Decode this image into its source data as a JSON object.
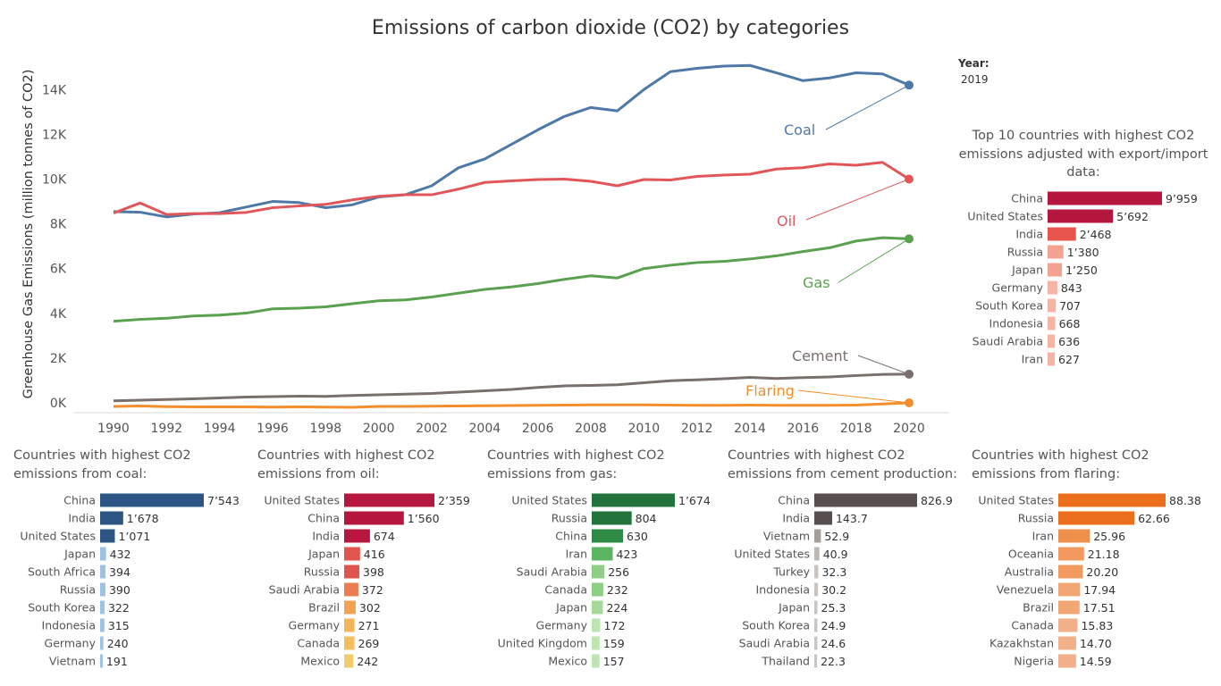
{
  "title": "Emissions of carbon dioxide (CO2) by categories",
  "year_selector": {
    "label": "Year:",
    "value": "2019"
  },
  "top10_title": "Top 10 countries with highest CO2 emissions adjusted with export/import data:",
  "panels": [
    {
      "title": "Countries with highest CO2 emissions from coal:"
    },
    {
      "title": "Countries with highest CO2 emissions from oil:"
    },
    {
      "title": "Countries with highest CO2 emissions from gas:"
    },
    {
      "title": "Countries with highest CO2 emissions from cement production:"
    },
    {
      "title": "Countries with highest CO2 emissions from flaring:"
    }
  ],
  "chart_data": [
    {
      "type": "line",
      "title": "Emissions of carbon dioxide (CO2) by categories",
      "xlabel": "",
      "ylabel": "Greenhouse Gas Emissions (million tonnes of CO2)",
      "x": [
        1990,
        1991,
        1992,
        1993,
        1994,
        1995,
        1996,
        1997,
        1998,
        1999,
        2000,
        2001,
        2002,
        2003,
        2004,
        2005,
        2006,
        2007,
        2008,
        2009,
        2010,
        2011,
        2012,
        2013,
        2014,
        2015,
        2016,
        2017,
        2018,
        2019,
        2020
      ],
      "xticks": [
        "1990",
        "1992",
        "1994",
        "1996",
        "1998",
        "2000",
        "2002",
        "2004",
        "2006",
        "2008",
        "2010",
        "2012",
        "2014",
        "2016",
        "2018",
        "2020"
      ],
      "yticks": [
        "0K",
        "2K",
        "4K",
        "6K",
        "8K",
        "10K",
        "12K",
        "14K"
      ],
      "xlim": [
        1990,
        2020
      ],
      "ylim": [
        0,
        15800
      ],
      "grid": false,
      "series": [
        {
          "name": "Coal",
          "color": "#4e79a7",
          "values": [
            8550,
            8520,
            8310,
            8440,
            8500,
            8750,
            9000,
            8950,
            8720,
            8850,
            9200,
            9300,
            9700,
            10500,
            10900,
            11550,
            12200,
            12800,
            13200,
            13050,
            14000,
            14800,
            14950,
            15050,
            15080,
            14750,
            14400,
            14520,
            14750,
            14700,
            14200
          ]
        },
        {
          "name": "Oil",
          "color": "#e15759",
          "values": [
            8480,
            8930,
            8420,
            8460,
            8460,
            8510,
            8720,
            8800,
            8870,
            9070,
            9230,
            9300,
            9300,
            9550,
            9850,
            9920,
            9980,
            10000,
            9900,
            9700,
            9980,
            9960,
            10120,
            10180,
            10220,
            10450,
            10510,
            10680,
            10620,
            10750,
            10000
          ]
        },
        {
          "name": "Gas",
          "color": "#59a14f",
          "values": [
            3650,
            3730,
            3780,
            3880,
            3920,
            4010,
            4200,
            4230,
            4290,
            4430,
            4560,
            4600,
            4730,
            4900,
            5070,
            5180,
            5330,
            5520,
            5680,
            5580,
            6000,
            6150,
            6270,
            6320,
            6430,
            6570,
            6760,
            6930,
            7230,
            7380,
            7330
          ]
        },
        {
          "name": "Cement",
          "color": "#79706e",
          "values": [
            90,
            120,
            150,
            180,
            220,
            260,
            280,
            300,
            290,
            330,
            360,
            390,
            420,
            480,
            540,
            600,
            690,
            760,
            780,
            810,
            900,
            990,
            1030,
            1080,
            1140,
            1090,
            1130,
            1160,
            1220,
            1270,
            1280
          ]
        },
        {
          "name": "Flaring",
          "color": "#f28e2b",
          "values": [
            -160,
            -140,
            -170,
            -180,
            -180,
            -180,
            -190,
            -180,
            -190,
            -200,
            -160,
            -160,
            -150,
            -140,
            -130,
            -120,
            -110,
            -100,
            -90,
            -90,
            -90,
            -100,
            -110,
            -110,
            -100,
            -110,
            -110,
            -110,
            -100,
            -50,
            0
          ]
        }
      ]
    },
    {
      "type": "bar",
      "title": "Top 10 countries with highest CO2 emissions adjusted with export/import data:",
      "categories": [
        "China",
        "United States",
        "India",
        "Russia",
        "Japan",
        "Germany",
        "South Korea",
        "Indonesia",
        "Saudi Arabia",
        "Iran"
      ],
      "values": [
        9959,
        5692,
        2468,
        1380,
        1250,
        843,
        707,
        668,
        636,
        627
      ],
      "labels": [
        "9’959",
        "5’692",
        "2’468",
        "1’380",
        "1’250",
        "843",
        "707",
        "668",
        "636",
        "627"
      ],
      "colors": [
        "#b5173e",
        "#b5173e",
        "#e8554f",
        "#f4a392",
        "#f4a392",
        "#f6b4a4",
        "#f6b4a4",
        "#f6b4a4",
        "#f6b4a4",
        "#f6b4a4"
      ]
    },
    {
      "type": "bar",
      "title": "Countries with highest CO2 emissions from coal:",
      "categories": [
        "China",
        "India",
        "United States",
        "Japan",
        "South Africa",
        "Russia",
        "South Korea",
        "Indonesia",
        "Germany",
        "Vietnam"
      ],
      "values": [
        7543,
        1678,
        1071,
        432,
        394,
        390,
        322,
        315,
        240,
        191
      ],
      "labels": [
        "7’543",
        "1’678",
        "1’071",
        "432",
        "394",
        "390",
        "322",
        "315",
        "240",
        "191"
      ],
      "colors": [
        "#2c5584",
        "#2c5584",
        "#2c5584",
        "#9cc3e3",
        "#9cc3e3",
        "#9cc3e3",
        "#9cc3e3",
        "#9cc3e3",
        "#9cc3e3",
        "#9cc3e3"
      ]
    },
    {
      "type": "bar",
      "title": "Countries with highest CO2 emissions from oil:",
      "categories": [
        "United States",
        "China",
        "India",
        "Japan",
        "Russia",
        "Saudi Arabia",
        "Brazil",
        "Germany",
        "Canada",
        "Mexico"
      ],
      "values": [
        2359,
        1560,
        674,
        416,
        398,
        372,
        302,
        271,
        269,
        242
      ],
      "labels": [
        "2’359",
        "1’560",
        "674",
        "416",
        "398",
        "372",
        "302",
        "271",
        "269",
        "242"
      ],
      "colors": [
        "#b5173e",
        "#b5173e",
        "#b5173e",
        "#e2554c",
        "#e2554c",
        "#ec7d4e",
        "#f3a451",
        "#f4b459",
        "#f4bd5d",
        "#f3cd6a"
      ]
    },
    {
      "type": "bar",
      "title": "Countries with highest CO2 emissions from gas:",
      "categories": [
        "United States",
        "Russia",
        "China",
        "Iran",
        "Saudi Arabia",
        "Canada",
        "Japan",
        "Germany",
        "United Kingdom",
        "Mexico"
      ],
      "values": [
        1674,
        804,
        630,
        423,
        256,
        232,
        224,
        172,
        159,
        157
      ],
      "labels": [
        "1’674",
        "804",
        "630",
        "423",
        "256",
        "232",
        "224",
        "172",
        "159",
        "157"
      ],
      "colors": [
        "#23733c",
        "#23733c",
        "#2f8a45",
        "#5cb562",
        "#8fcf85",
        "#8fcf85",
        "#a6d99b",
        "#bfe4b3",
        "#bfe4b3",
        "#bfe4b3"
      ]
    },
    {
      "type": "bar",
      "title": "Countries with highest CO2 emissions from cement production:",
      "categories": [
        "China",
        "India",
        "Vietnam",
        "United States",
        "Turkey",
        "Indonesia",
        "Japan",
        "South Korea",
        "Saudi Arabia",
        "Thailand"
      ],
      "values": [
        826.9,
        143.7,
        52.9,
        40.9,
        32.3,
        30.2,
        25.3,
        24.9,
        24.6,
        22.3
      ],
      "labels": [
        "826.9",
        "143.7",
        "52.9",
        "40.9",
        "32.3",
        "30.2",
        "25.3",
        "24.9",
        "24.6",
        "22.3"
      ],
      "colors": [
        "#574f4f",
        "#574f4f",
        "#a59e9b",
        "#bdb6b2",
        "#cbc5c2",
        "#cbc5c2",
        "#cbc5c2",
        "#cbc5c2",
        "#cbc5c2",
        "#cbc5c2"
      ]
    },
    {
      "type": "bar",
      "title": "Countries with highest CO2 emissions from flaring:",
      "categories": [
        "United States",
        "Russia",
        "Iran",
        "Oceania",
        "Australia",
        "Venezuela",
        "Brazil",
        "Canada",
        "Kazakhstan",
        "Nigeria"
      ],
      "values": [
        88.38,
        62.66,
        25.96,
        21.18,
        20.2,
        17.94,
        17.51,
        15.83,
        14.7,
        14.59
      ],
      "labels": [
        "88.38",
        "62.66",
        "25.96",
        "21.18",
        "20.20",
        "17.94",
        "17.51",
        "15.83",
        "14.70",
        "14.59"
      ],
      "colors": [
        "#eb6f1c",
        "#eb6f1c",
        "#f0904d",
        "#f29a60",
        "#f29a60",
        "#f2a673",
        "#f2a673",
        "#f2b08a",
        "#f2b08a",
        "#f2b08a"
      ]
    }
  ]
}
